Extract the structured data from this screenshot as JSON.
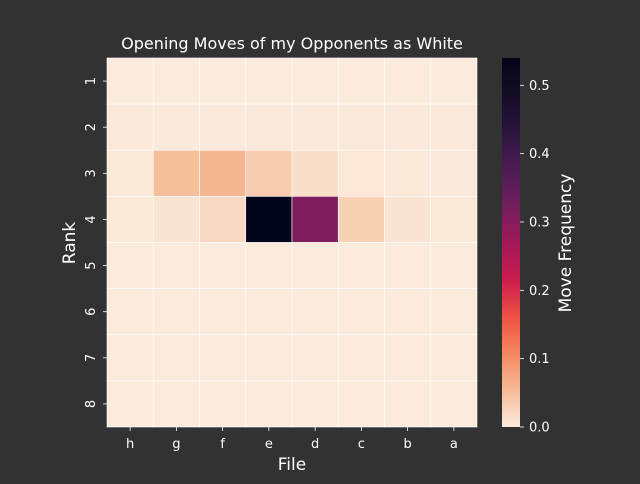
{
  "chart_data": {
    "type": "heatmap",
    "title": "Opening Moves of my Opponents as White",
    "xlabel": "File",
    "ylabel": "Rank",
    "x_categories": [
      "h",
      "g",
      "f",
      "e",
      "d",
      "c",
      "b",
      "a"
    ],
    "y_categories": [
      "1",
      "2",
      "3",
      "4",
      "5",
      "6",
      "7",
      "8"
    ],
    "values": [
      [
        0,
        0,
        0,
        0,
        0,
        0,
        0,
        0
      ],
      [
        0.002,
        0.002,
        0.002,
        0.002,
        0.002,
        0.002,
        0.002,
        0.002
      ],
      [
        0.003,
        0.05,
        0.06,
        0.035,
        0.015,
        0.005,
        0.003,
        0.002
      ],
      [
        0.003,
        0.008,
        0.02,
        0.54,
        0.31,
        0.03,
        0.008,
        0.003
      ],
      [
        0,
        0,
        0,
        0,
        0,
        0,
        0,
        0
      ],
      [
        0,
        0,
        0,
        0,
        0,
        0,
        0,
        0
      ],
      [
        0,
        0,
        0,
        0,
        0,
        0,
        0,
        0
      ],
      [
        0,
        0,
        0,
        0,
        0,
        0,
        0,
        0
      ]
    ],
    "colorbar": {
      "label": "Move Frequency",
      "range": [
        0,
        0.54
      ],
      "ticks": [
        0.0,
        0.1,
        0.2,
        0.3,
        0.4,
        0.5
      ],
      "tick_labels": [
        "0.0",
        "0.1",
        "0.2",
        "0.3",
        "0.4",
        "0.5"
      ]
    },
    "colormap": "rocket_r",
    "grid": true,
    "legend": "colorbar-right"
  }
}
